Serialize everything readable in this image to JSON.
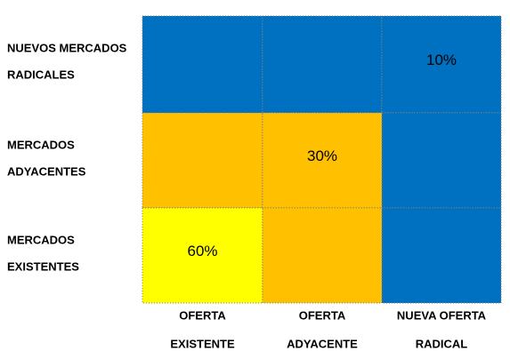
{
  "row_labels": [
    [
      "NUEVOS MERCADOS",
      "RADICALES"
    ],
    [
      "MERCADOS",
      "ADYACENTES"
    ],
    [
      "MERCADOS",
      "EXISTENTES"
    ]
  ],
  "column_labels": [
    [
      "OFERTA",
      "EXISTENTE"
    ],
    [
      "OFERTA",
      "ADYACENTE"
    ],
    [
      "NUEVA OFERTA",
      "RADICAL"
    ]
  ],
  "cells": [
    [
      {
        "color": "#0070c0"
      },
      {
        "color": "#0070c0"
      },
      {
        "color": "#0070c0",
        "text": "10%"
      }
    ],
    [
      {
        "color": "#ffc000"
      },
      {
        "color": "#ffc000",
        "text": "30%"
      },
      {
        "color": "#0070c0"
      }
    ],
    [
      {
        "color": "#ffff00",
        "text": "60%"
      },
      {
        "color": "#ffc000"
      },
      {
        "color": "#0070c0"
      }
    ]
  ]
}
